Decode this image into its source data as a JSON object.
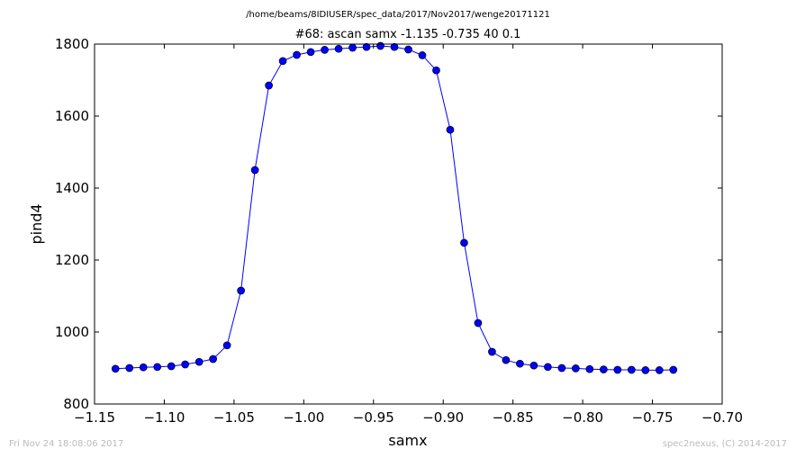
{
  "header": {
    "path": "/home/beams/8IDIUSER/spec_data/2017/Nov2017/wenge20171121"
  },
  "footer": {
    "timestamp": "Fri Nov 24 18:08:06 2017",
    "credit": "spec2nexus, (C) 2014-2017"
  },
  "chart_data": {
    "type": "line",
    "title": "#68: ascan  samx -1.135 -0.735  40 0.1",
    "xlabel": "samx",
    "ylabel": "pind4",
    "xlim": [
      -1.15,
      -0.7
    ],
    "ylim": [
      800,
      1800
    ],
    "xticks": [
      -1.15,
      -1.1,
      -1.05,
      -1.0,
      -0.95,
      -0.9,
      -0.85,
      -0.8,
      -0.75,
      -0.7
    ],
    "xtick_labels": [
      "−1.15",
      "−1.10",
      "−1.05",
      "−1.00",
      "−0.95",
      "−0.90",
      "−0.85",
      "−0.80",
      "−0.75",
      "−0.70"
    ],
    "yticks": [
      800,
      1000,
      1200,
      1400,
      1600,
      1800
    ],
    "ytick_labels": [
      "800",
      "1000",
      "1200",
      "1400",
      "1600",
      "1800"
    ],
    "grid": false,
    "line_color": "#0000ff",
    "marker": "circle",
    "x": [
      -1.135,
      -1.125,
      -1.115,
      -1.105,
      -1.095,
      -1.085,
      -1.075,
      -1.065,
      -1.055,
      -1.045,
      -1.035,
      -1.025,
      -1.015,
      -1.005,
      -0.995,
      -0.985,
      -0.975,
      -0.965,
      -0.955,
      -0.945,
      -0.935,
      -0.925,
      -0.915,
      -0.905,
      -0.895,
      -0.885,
      -0.875,
      -0.865,
      -0.855,
      -0.845,
      -0.835,
      -0.825,
      -0.815,
      -0.805,
      -0.795,
      -0.785,
      -0.775,
      -0.765,
      -0.755,
      -0.745,
      -0.735
    ],
    "y": [
      898,
      900,
      902,
      903,
      905,
      910,
      917,
      925,
      963,
      1115,
      1450,
      1685,
      1753,
      1770,
      1778,
      1784,
      1787,
      1790,
      1792,
      1795,
      1792,
      1785,
      1769,
      1727,
      1562,
      1248,
      1025,
      945,
      922,
      912,
      907,
      903,
      900,
      899,
      897,
      896,
      895,
      895,
      894,
      894,
      895
    ]
  }
}
